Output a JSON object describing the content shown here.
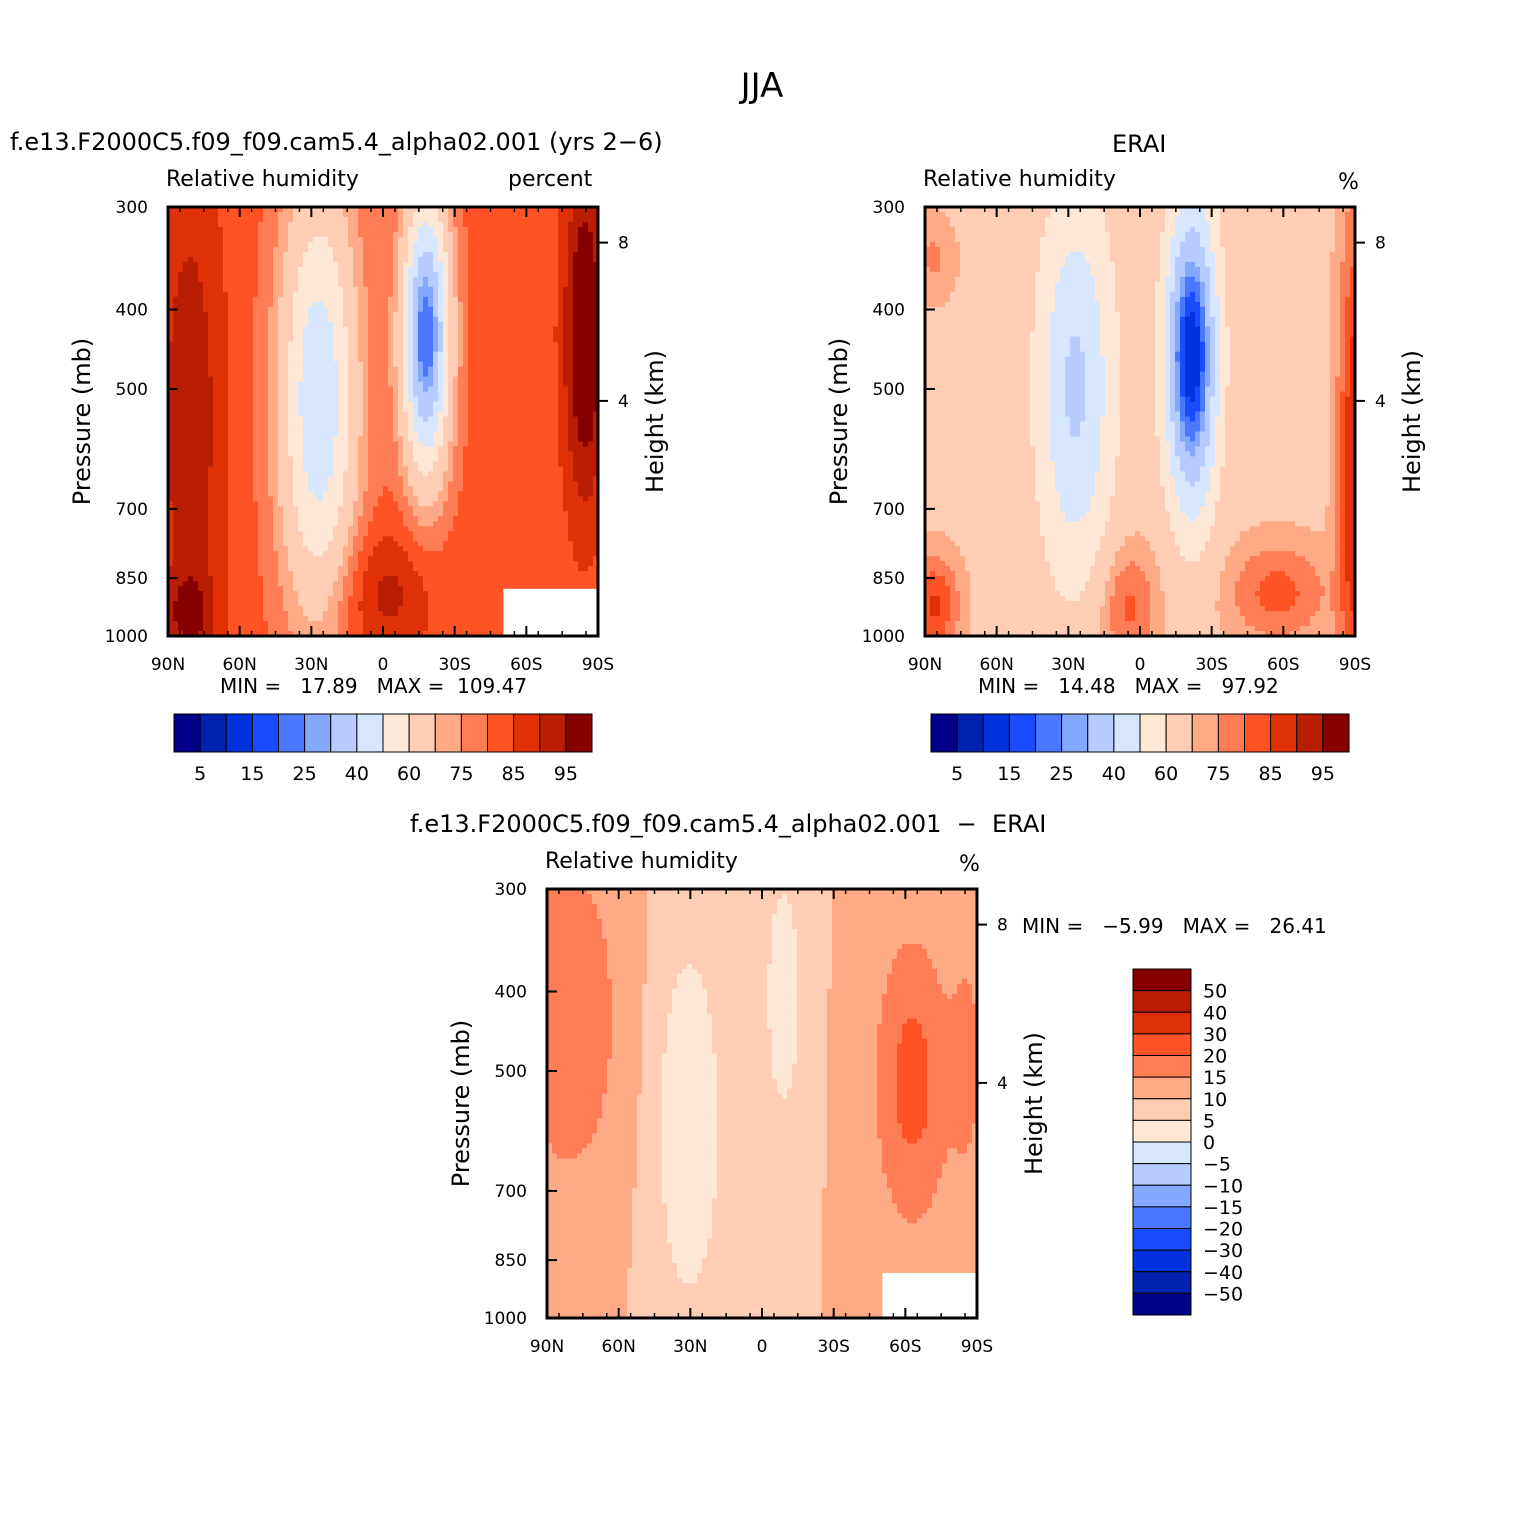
{
  "title": "JJA",
  "panels": [
    {
      "title": "f.e13.F2000C5.f09_f09.cam5.4_alpha02.001 (yrs 2−6)",
      "left_label": "Relative humidity",
      "right_label": "percent",
      "min_text": "MIN =   17.89   MAX =  109.47"
    },
    {
      "title": "ERAI",
      "left_label": "Relative humidity",
      "right_label": "%",
      "min_text": "MIN =   14.48   MAX =   97.92"
    },
    {
      "title": "f.e13.F2000C5.f09_f09.cam5.4_alpha02.001  −  ERAI",
      "left_label": "Relative humidity",
      "right_label": "%",
      "min_text": "MIN =   −5.99   MAX =   26.41"
    }
  ],
  "colors": {
    "levels_abs": [
      "#00008a",
      "#0022b0",
      "#0033dd",
      "#1a4cff",
      "#4a78ff",
      "#85a8ff",
      "#b6ccff",
      "#d6e6ff",
      "#ffe7d6",
      "#ffcdb4",
      "#ffaa87",
      "#ff7d55",
      "#ff5326",
      "#e03008",
      "#b91e02",
      "#870000"
    ],
    "levels_diff": [
      "#00008a",
      "#0022b0",
      "#0033dd",
      "#1a4cff",
      "#4a78ff",
      "#85a8ff",
      "#b6ccff",
      "#d6e6ff",
      "#ffe7d6",
      "#ffcdb4",
      "#ffaa87",
      "#ff7d55",
      "#ff5326",
      "#e03008",
      "#b91e02",
      "#870000"
    ]
  },
  "chart_data": [
    {
      "type": "heatmap",
      "title": "f.e13.F2000C5.f09_f09.cam5.4_alpha02.001 (yrs 2−6)",
      "xlabel": "",
      "ylabel": "Pressure (mb)",
      "y2label": "Height (km)",
      "x_ticks": [
        "90N",
        "60N",
        "30N",
        "0",
        "30S",
        "60S",
        "90S"
      ],
      "y_ticks": [
        "300",
        "400",
        "500",
        "700",
        "850",
        "1000"
      ],
      "y2_ticks": [
        "8",
        "4"
      ],
      "x_range": [
        90,
        -90
      ],
      "y_range": [
        1000,
        300
      ],
      "y_log": true,
      "min": 17.89,
      "max": 109.47,
      "colorbar_labels": [
        "5",
        "15",
        "25",
        "40",
        "60",
        "75",
        "85",
        "95"
      ]
    },
    {
      "type": "heatmap",
      "title": "ERAI",
      "xlabel": "",
      "ylabel": "Pressure (mb)",
      "y2label": "Height (km)",
      "x_ticks": [
        "90N",
        "60N",
        "30N",
        "0",
        "30S",
        "60S",
        "90S"
      ],
      "y_ticks": [
        "300",
        "400",
        "500",
        "700",
        "850",
        "1000"
      ],
      "y2_ticks": [
        "8",
        "4"
      ],
      "x_range": [
        90,
        -90
      ],
      "y_range": [
        1000,
        300
      ],
      "y_log": true,
      "min": 14.48,
      "max": 97.92,
      "colorbar_labels": [
        "5",
        "15",
        "25",
        "40",
        "60",
        "75",
        "85",
        "95"
      ]
    },
    {
      "type": "heatmap",
      "title": "f.e13.F2000C5.f09_f09.cam5.4_alpha02.001 − ERAI",
      "xlabel": "",
      "ylabel": "Pressure (mb)",
      "y2label": "Height (km)",
      "x_ticks": [
        "90N",
        "60N",
        "30N",
        "0",
        "30S",
        "60S",
        "90S"
      ],
      "y_ticks": [
        "300",
        "400",
        "500",
        "700",
        "850",
        "1000"
      ],
      "y2_ticks": [
        "8",
        "4"
      ],
      "x_range": [
        90,
        -90
      ],
      "y_range": [
        1000,
        300
      ],
      "y_log": true,
      "min": -5.99,
      "max": 26.41,
      "colorbar_labels": [
        "50",
        "40",
        "30",
        "20",
        "15",
        "10",
        "5",
        "0",
        "−5",
        "−10",
        "−15",
        "−20",
        "−30",
        "−40",
        "−50"
      ]
    }
  ]
}
